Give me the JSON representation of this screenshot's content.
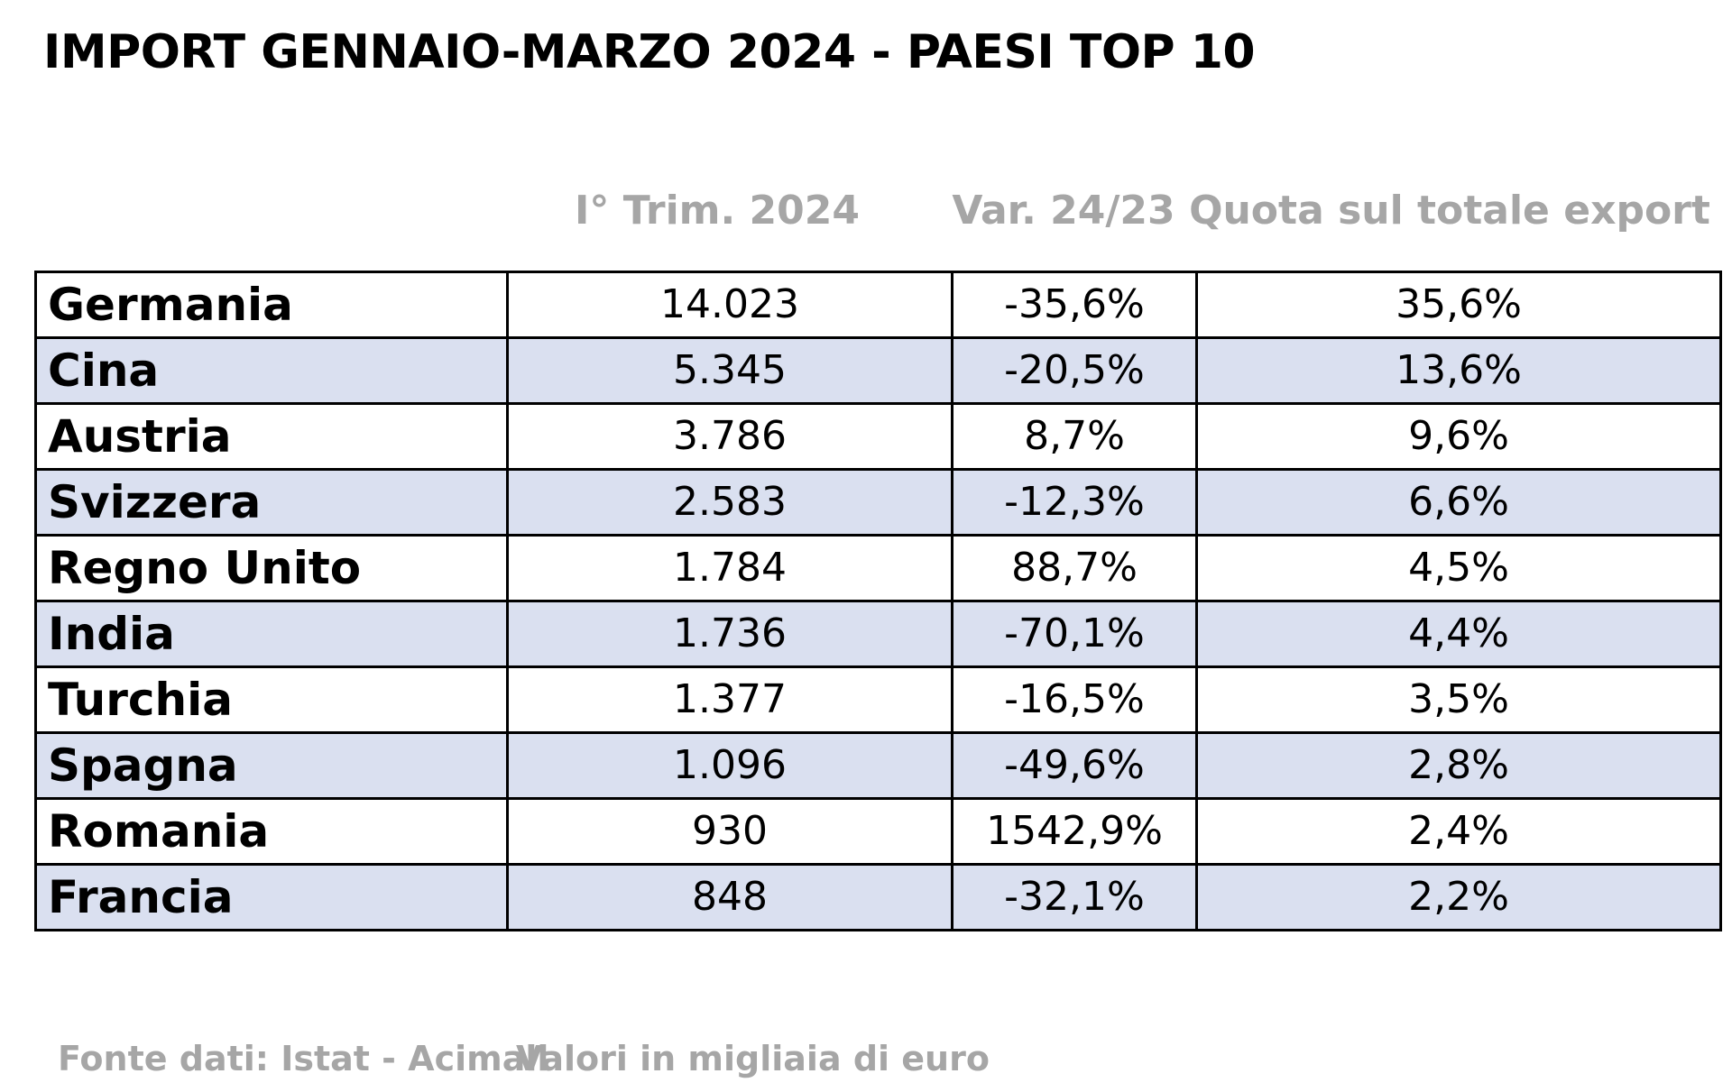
{
  "title": "IMPORT GENNAIO-MARZO 2024 - PAESI TOP 10",
  "chart_data": {
    "type": "table",
    "title": "IMPORT GENNAIO-MARZO 2024 - PAESI TOP 10",
    "columns": [
      "",
      "I° Trim. 2024",
      "Var. 24/23",
      "Quota sul totale export"
    ],
    "rows": [
      [
        "Germania",
        "14.023",
        "-35,6%",
        "35,6%"
      ],
      [
        "Cina",
        "5.345",
        "-20,5%",
        "13,6%"
      ],
      [
        "Austria",
        "3.786",
        "8,7%",
        "9,6%"
      ],
      [
        "Svizzera",
        "2.583",
        "-12,3%",
        "6,6%"
      ],
      [
        "Regno Unito",
        "1.784",
        "88,7%",
        "4,5%"
      ],
      [
        "India",
        "1.736",
        "-70,1%",
        "4,4%"
      ],
      [
        "Turchia",
        "1.377",
        "-16,5%",
        "3,5%"
      ],
      [
        "Spagna",
        "1.096",
        "-49,6%",
        "2,8%"
      ],
      [
        "Romania",
        "930",
        "1542,9%",
        "2,4%"
      ],
      [
        "Francia",
        "848",
        "-32,1%",
        "2,2%"
      ]
    ]
  },
  "colors": {
    "header_text": "#a6a6a6",
    "row_alt_background": "#dae0f0",
    "border": "#000000"
  },
  "footer": {
    "source": "Fonte dati: Istat - Acimall",
    "units": "Valori in migliaia di euro"
  }
}
